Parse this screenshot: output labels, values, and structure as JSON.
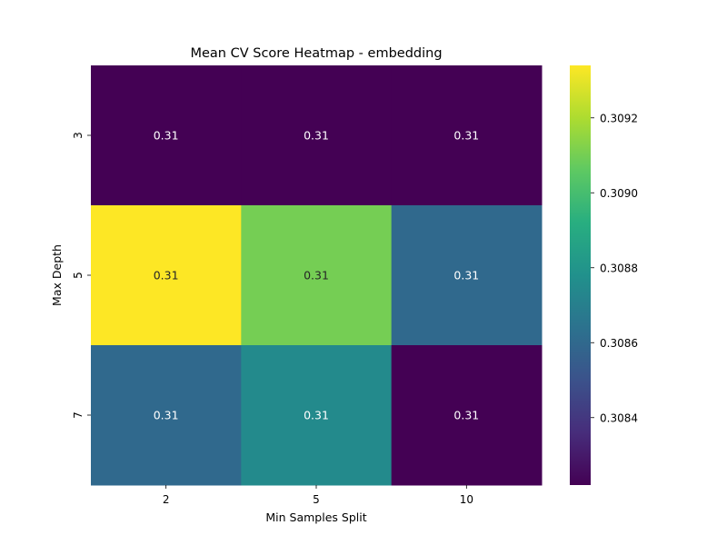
{
  "chart_data": {
    "type": "heatmap",
    "title": "Mean CV Score Heatmap - embedding",
    "xlabel": "Min Samples Split",
    "ylabel": "Max Depth",
    "x_categories": [
      "2",
      "5",
      "10"
    ],
    "y_categories": [
      "3",
      "5",
      "7"
    ],
    "values": [
      [
        0.30822,
        0.30822,
        0.30822
      ],
      [
        0.30934,
        0.3091,
        0.3086
      ],
      [
        0.3086,
        0.30875,
        0.30822
      ]
    ],
    "cell_labels": [
      [
        "0.31",
        "0.31",
        "0.31"
      ],
      [
        "0.31",
        "0.31",
        "0.31"
      ],
      [
        "0.31",
        "0.31",
        "0.31"
      ]
    ],
    "colorscale": "viridis",
    "colorbar": {
      "min": 0.30822,
      "max": 0.30934,
      "ticks": [
        0.3084,
        0.3086,
        0.3088,
        0.309,
        0.3092
      ],
      "tick_labels": [
        "0.3084",
        "0.3086",
        "0.3088",
        "0.3090",
        "0.3092"
      ]
    }
  }
}
